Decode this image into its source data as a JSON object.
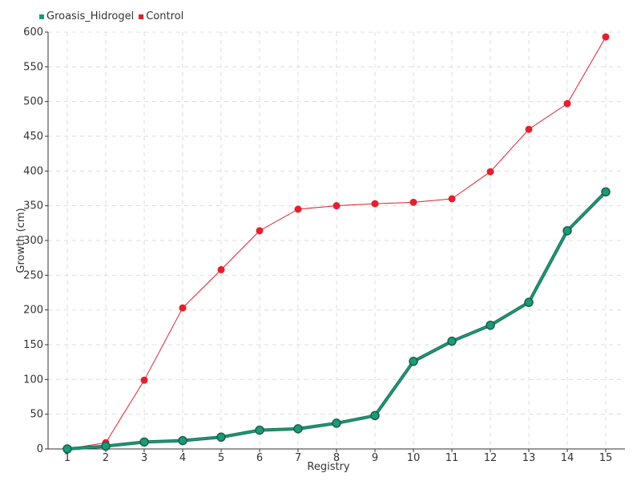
{
  "chart_data": {
    "type": "line",
    "title": "",
    "xlabel": "Registry",
    "ylabel": "Growth (cm)",
    "categories": [
      "1",
      "2",
      "3",
      "4",
      "5",
      "6",
      "7",
      "8",
      "9",
      "10",
      "11",
      "12",
      "13",
      "14",
      "15"
    ],
    "ylim": [
      0,
      600
    ],
    "yticks": [
      0,
      50,
      100,
      150,
      200,
      250,
      300,
      350,
      400,
      450,
      500,
      550,
      600
    ],
    "grid": true,
    "legend_position": "top-left",
    "series": [
      {
        "name": "Groasis_Hidrogel",
        "color": "#1a9b78",
        "values": [
          0,
          4,
          10,
          12,
          17,
          27,
          29,
          37,
          48,
          126,
          155,
          178,
          211,
          314,
          370
        ]
      },
      {
        "name": "Control",
        "color": "#e3202e",
        "values": [
          0,
          9,
          99,
          203,
          258,
          314,
          345,
          350,
          353,
          355,
          360,
          399,
          460,
          497,
          593
        ]
      }
    ]
  }
}
